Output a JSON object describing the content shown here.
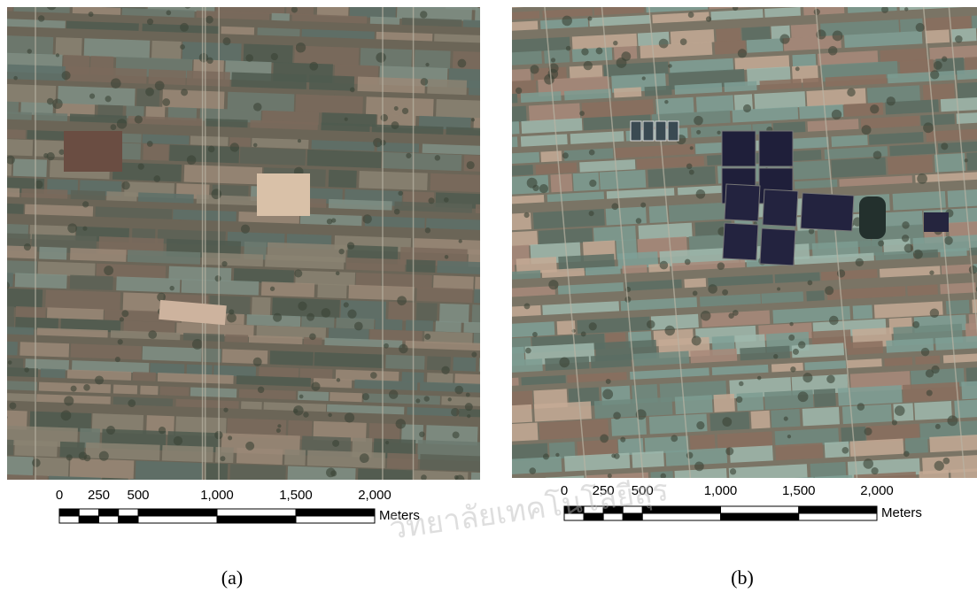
{
  "panels": [
    {
      "caption": "(a)",
      "scale_bar": {
        "labels": [
          "0",
          "250",
          "500",
          "1,000",
          "1,500",
          "2,000"
        ],
        "unit": "Meters"
      }
    },
    {
      "caption": "(b)",
      "scale_bar": {
        "labels": [
          "0",
          "250",
          "500",
          "1,000",
          "1,500",
          "2,000"
        ],
        "unit": "Meters"
      }
    }
  ],
  "watermark": "วิทยาลัยเทคโนโลยีสุร"
}
